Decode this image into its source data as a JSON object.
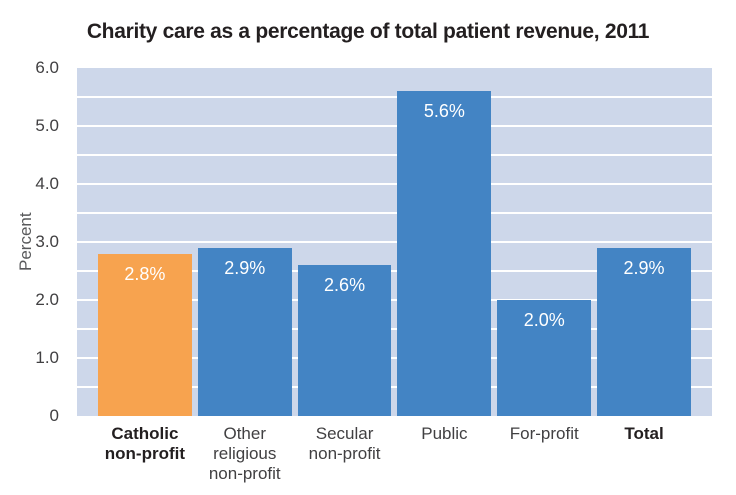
{
  "title": "Charity care as a percentage of total patient revenue, 2011",
  "chart_data": {
    "type": "bar",
    "title": "Charity care as a percentage of total patient revenue, 2011",
    "xlabel": "",
    "ylabel": "Percent",
    "ylim": [
      0,
      6.0
    ],
    "gridline_step": 0.5,
    "grid": true,
    "legend": false,
    "categories": [
      "Catholic non-profit",
      "Other religious non-profit",
      "Secular non-profit",
      "Public",
      "For-profit",
      "Total"
    ],
    "values": [
      2.8,
      2.9,
      2.6,
      5.6,
      2.0,
      2.9
    ],
    "bars": [
      {
        "category": "Catholic non-profit",
        "label_lines": "Catholic\nnon-profit",
        "value": 2.8,
        "value_label": "2.8%",
        "color": "#f7a34f",
        "emphasis": true
      },
      {
        "category": "Other religious non-profit",
        "label_lines": "Other\nreligious\nnon-profit",
        "value": 2.9,
        "value_label": "2.9%",
        "color": "#4384c4",
        "emphasis": false
      },
      {
        "category": "Secular non-profit",
        "label_lines": "Secular\nnon-profit",
        "value": 2.6,
        "value_label": "2.6%",
        "color": "#4384c4",
        "emphasis": false
      },
      {
        "category": "Public",
        "label_lines": "Public",
        "value": 5.6,
        "value_label": "5.6%",
        "color": "#4384c4",
        "emphasis": false
      },
      {
        "category": "For-profit",
        "label_lines": "For-profit",
        "value": 2.0,
        "value_label": "2.0%",
        "color": "#4384c4",
        "emphasis": false
      },
      {
        "category": "Total",
        "label_lines": "Total",
        "value": 2.9,
        "value_label": "2.9%",
        "color": "#4384c4",
        "emphasis": true
      }
    ],
    "yticks": [
      {
        "value": 6.0,
        "label": "6.0"
      },
      {
        "value": 5.0,
        "label": "5.0"
      },
      {
        "value": 4.0,
        "label": "4.0"
      },
      {
        "value": 3.0,
        "label": "3.0"
      },
      {
        "value": 2.0,
        "label": "2.0"
      },
      {
        "value": 1.0,
        "label": "1.0"
      },
      {
        "value": 0,
        "label": "0"
      }
    ],
    "colors": {
      "highlight_bar": "#f7a34f",
      "default_bar": "#4384c4",
      "plot_background": "#cdd7ea",
      "gridline": "#ffffff",
      "title_text": "#231f20",
      "axis_text": "#414042",
      "value_label_text": "#ffffff"
    }
  }
}
